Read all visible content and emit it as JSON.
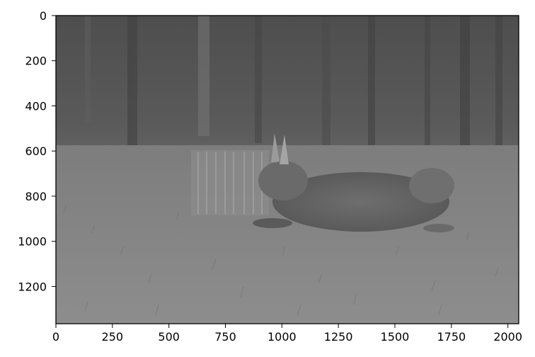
{
  "figure": {
    "image_description_name": "grayscale-photo-running-hare",
    "x_axis": {
      "range": [
        0,
        2048
      ],
      "ticks": [
        0,
        250,
        500,
        750,
        1000,
        1250,
        1500,
        1750,
        2000
      ],
      "tick_labels": [
        "0",
        "250",
        "500",
        "750",
        "1000",
        "1250",
        "1500",
        "1750",
        "2000"
      ]
    },
    "y_axis": {
      "range": [
        0,
        1365
      ],
      "ticks": [
        0,
        200,
        400,
        600,
        800,
        1000,
        1200
      ],
      "tick_labels": [
        "0",
        "200",
        "400",
        "600",
        "800",
        "1000",
        "1200"
      ]
    },
    "colors": {
      "frame": "#000000",
      "background": "#ffffff"
    }
  }
}
